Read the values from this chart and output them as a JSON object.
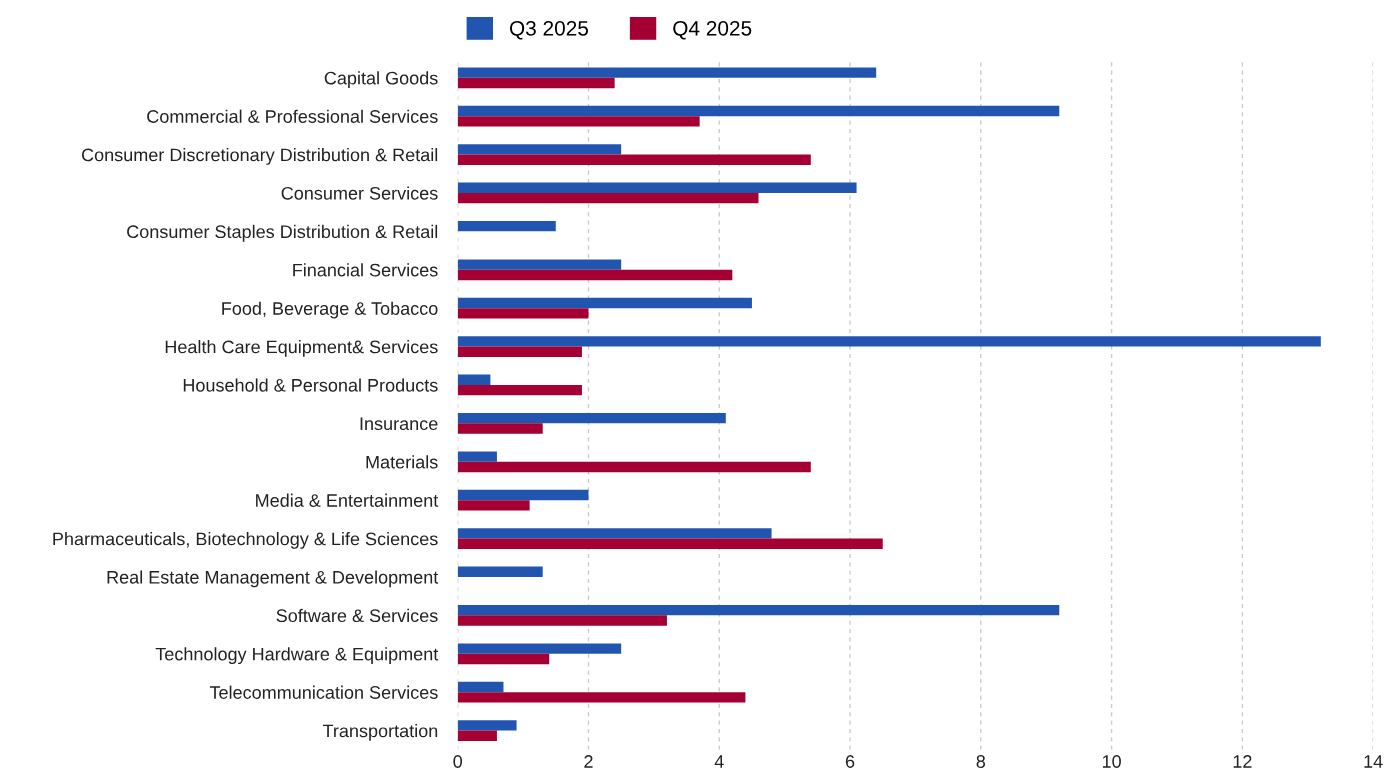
{
  "chart_data": {
    "type": "bar",
    "orientation": "horizontal",
    "categories": [
      "Capital Goods",
      "Commercial & Professional Services",
      "Consumer Discretionary Distribution & Retail",
      "Consumer Services",
      "Consumer Staples Distribution & Retail",
      "Financial Services",
      "Food, Beverage & Tobacco",
      "Health Care Equipment& Services",
      "Household & Personal Products",
      "Insurance",
      "Materials",
      "Media & Entertainment",
      "Pharmaceuticals, Biotechnology & Life Sciences",
      "Real Estate Management & Development",
      "Software & Services",
      "Technology Hardware & Equipment",
      "Telecommunication Services",
      "Transportation"
    ],
    "series": [
      {
        "name": "Q3 2025",
        "color": "#2255b0",
        "values": [
          6.4,
          9.2,
          2.5,
          6.1,
          1.5,
          2.5,
          4.5,
          13.2,
          0.5,
          4.1,
          0.6,
          2.0,
          4.8,
          1.3,
          9.2,
          2.5,
          0.7,
          0.9
        ]
      },
      {
        "name": "Q4 2025",
        "color": "#a50034",
        "values": [
          2.4,
          3.7,
          5.4,
          4.6,
          null,
          4.2,
          2.0,
          1.9,
          1.9,
          1.3,
          5.4,
          1.1,
          6.5,
          null,
          3.2,
          1.4,
          4.4,
          0.6
        ]
      }
    ],
    "xlim": [
      0,
      14
    ],
    "xticks": [
      0,
      2,
      4,
      6,
      8,
      10,
      12,
      14
    ],
    "grid": "x",
    "legend": "top left"
  }
}
